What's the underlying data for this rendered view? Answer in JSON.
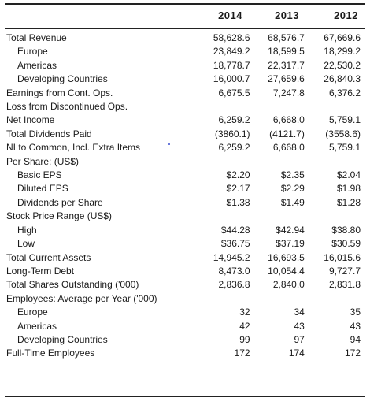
{
  "years": [
    "2014",
    "2013",
    "2012"
  ],
  "rows": [
    {
      "label": "Total Revenue",
      "indent": false,
      "v2014": "58,628.6",
      "v2013": "68,576.7",
      "v2012": "67,669.6"
    },
    {
      "label": "Europe",
      "indent": true,
      "v2014": "23,849.2",
      "v2013": "18,599.5",
      "v2012": "18,299.2"
    },
    {
      "label": "Americas",
      "indent": true,
      "v2014": "18,778.7",
      "v2013": "22,317.7",
      "v2012": "22,530.2"
    },
    {
      "label": "Developing Countries",
      "indent": true,
      "v2014": "16,000.7",
      "v2013": "27,659.6",
      "v2012": "26,840.3"
    },
    {
      "label": "Earnings from Cont. Ops.",
      "indent": false,
      "v2014": "6,675.5",
      "v2013": "7,247.8",
      "v2012": "6,376.2"
    },
    {
      "label": "Loss from Discontinued Ops.",
      "indent": false,
      "v2014": "",
      "v2013": "",
      "v2012": ""
    },
    {
      "label": "Net Income",
      "indent": false,
      "v2014": "6,259.2",
      "v2013": "6,668.0",
      "v2012": "5,759.1"
    },
    {
      "label": "Total Dividends Paid",
      "indent": false,
      "v2014": "(3860.1)",
      "v2013": "(4121.7)",
      "v2012": "(3558.6)"
    },
    {
      "label": "NI to Common, Incl. Extra Items",
      "indent": false,
      "v2014": "6,259.2",
      "v2013": "6,668.0",
      "v2012": "5,759.1"
    },
    {
      "label": "Per Share: (US$)",
      "indent": false,
      "v2014": "",
      "v2013": "",
      "v2012": ""
    },
    {
      "label": "Basic EPS",
      "indent": true,
      "v2014": "$2.20",
      "v2013": "$2.35",
      "v2012": "$2.04"
    },
    {
      "label": "Diluted EPS",
      "indent": true,
      "v2014": "$2.17",
      "v2013": "$2.29",
      "v2012": "$1.98"
    },
    {
      "label": "Dividends per Share",
      "indent": true,
      "v2014": "$1.38",
      "v2013": "$1.49",
      "v2012": "$1.28"
    },
    {
      "label": "Stock Price Range (US$)",
      "indent": false,
      "v2014": "",
      "v2013": "",
      "v2012": ""
    },
    {
      "label": "High",
      "indent": true,
      "v2014": "$44.28",
      "v2013": "$42.94",
      "v2012": "$38.80"
    },
    {
      "label": "Low",
      "indent": true,
      "v2014": "$36.75",
      "v2013": "$37.19",
      "v2012": "$30.59"
    },
    {
      "label": "Total Current Assets",
      "indent": false,
      "v2014": "14,945.2",
      "v2013": "16,693.5",
      "v2012": "16,015.6"
    },
    {
      "label": "Long-Term Debt",
      "indent": false,
      "v2014": "8,473.0",
      "v2013": "10,054.4",
      "v2012": "9,727.7"
    },
    {
      "label": "Total Shares Outstanding ('000)",
      "indent": false,
      "v2014": "2,836.8",
      "v2013": "2,840.0",
      "v2012": "2,831.8"
    },
    {
      "label": "Employees: Average per Year ('000)",
      "indent": false,
      "v2014": "",
      "v2013": "",
      "v2012": ""
    },
    {
      "label": "Europe",
      "indent": true,
      "v2014": "32",
      "v2013": "34",
      "v2012": "35"
    },
    {
      "label": "Americas",
      "indent": true,
      "v2014": "42",
      "v2013": "43",
      "v2012": "43"
    },
    {
      "label": "Developing Countries",
      "indent": true,
      "v2014": "99",
      "v2013": "97",
      "v2012": "94"
    },
    {
      "label": "Full-Time Employees",
      "indent": false,
      "v2014": "172",
      "v2013": "174",
      "v2012": "172"
    }
  ]
}
